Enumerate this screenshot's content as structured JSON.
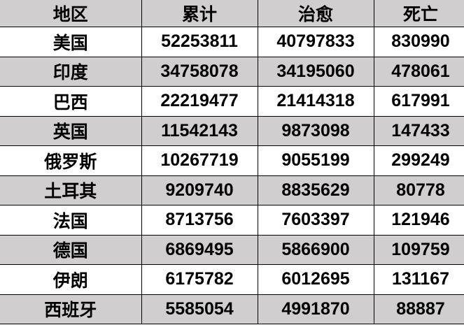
{
  "colors": {
    "header_bg": "#d0cece",
    "alt_row_bg": "#d0cece",
    "row_bg": "#ffffff",
    "border": "#000000"
  },
  "table": {
    "headers": [
      "地区",
      "累计",
      "治愈",
      "死亡"
    ],
    "rows": [
      [
        "美国",
        "52253811",
        "40797833",
        "830990"
      ],
      [
        "印度",
        "34758078",
        "34195060",
        "478061"
      ],
      [
        "巴西",
        "22219477",
        "21414318",
        "617991"
      ],
      [
        "英国",
        "11542143",
        "9873098",
        "147433"
      ],
      [
        "俄罗斯",
        "10267719",
        "9055199",
        "299249"
      ],
      [
        "土耳其",
        "9209740",
        "8835629",
        "80778"
      ],
      [
        "法国",
        "8713756",
        "7603397",
        "121946"
      ],
      [
        "德国",
        "6869495",
        "5866900",
        "109759"
      ],
      [
        "伊朗",
        "6175782",
        "6012695",
        "131167"
      ],
      [
        "西班牙",
        "5585054",
        "4991870",
        "88887"
      ]
    ]
  }
}
